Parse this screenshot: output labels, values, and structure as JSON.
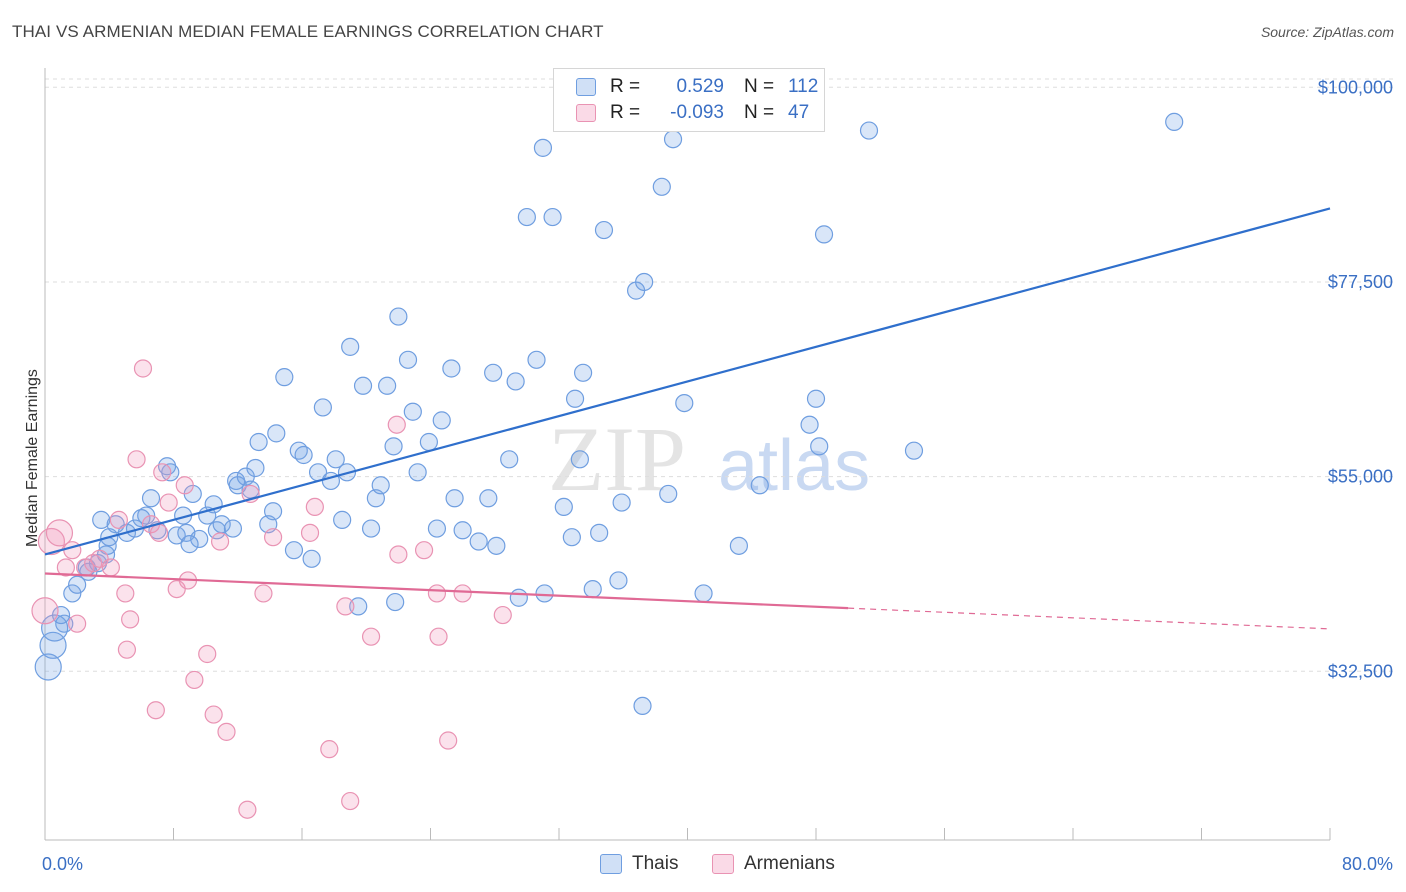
{
  "header": {
    "title": "THAI VS ARMENIAN MEDIAN FEMALE EARNINGS CORRELATION CHART",
    "source": "Source: ZipAtlas.com"
  },
  "watermark": {
    "zip": "ZIP",
    "atlas": "atlas"
  },
  "colors": {
    "thai_fill": "rgba(120,165,230,0.28)",
    "thai_stroke": "#6f9ee0",
    "thai_line": "#2f6fcc",
    "armenian_fill": "rgba(240,150,185,0.28)",
    "armenian_stroke": "#e993b3",
    "armenian_line": "#e06a95",
    "grid": "#dddddd",
    "tick_label": "#3a6fc4"
  },
  "legend": {
    "rows": [
      {
        "r_label": "R =",
        "r_value": "0.529",
        "n_label": "N =",
        "n_value": "112"
      },
      {
        "r_label": "R =",
        "r_value": "-0.093",
        "n_label": "N =",
        "n_value": "47"
      }
    ]
  },
  "bottom_legend": {
    "thai": "Thais",
    "armenian": "Armenians"
  },
  "chart_data": {
    "type": "scatter",
    "xlabel": "",
    "ylabel": "Median Female Earnings",
    "xlim": [
      0,
      80
    ],
    "ylim": [
      13000,
      102000
    ],
    "x_tick_labels": {
      "left": "0.0%",
      "right": "80.0%"
    },
    "y_ticks": [
      {
        "value": 32500,
        "label": "$32,500"
      },
      {
        "value": 55000,
        "label": "$55,000"
      },
      {
        "value": 77500,
        "label": "$77,500"
      },
      {
        "value": 100000,
        "label": "$100,000"
      }
    ],
    "series": [
      {
        "name": "Thais",
        "trend": {
          "x1": 0,
          "y1": 46000,
          "x2": 80,
          "y2": 86000,
          "solid_to": 80
        },
        "points": [
          [
            0.2,
            33000
          ],
          [
            0.5,
            35500
          ],
          [
            1.2,
            38000
          ],
          [
            1.7,
            41500
          ],
          [
            2.0,
            42500
          ],
          [
            2.6,
            44500
          ],
          [
            3.3,
            45000
          ],
          [
            3.8,
            46000
          ],
          [
            3.5,
            50000
          ],
          [
            3.9,
            47000
          ],
          [
            4.4,
            49500
          ],
          [
            5.1,
            48500
          ],
          [
            5.6,
            49000
          ],
          [
            6.3,
            50500
          ],
          [
            6.6,
            52500
          ],
          [
            7.0,
            48800
          ],
          [
            7.8,
            55500
          ],
          [
            7.6,
            56200
          ],
          [
            8.2,
            48200
          ],
          [
            8.6,
            50500
          ],
          [
            8.8,
            48500
          ],
          [
            9.2,
            53000
          ],
          [
            9.6,
            47800
          ],
          [
            10.1,
            50500
          ],
          [
            10.5,
            51800
          ],
          [
            10.7,
            48800
          ],
          [
            11.0,
            49500
          ],
          [
            11.7,
            49000
          ],
          [
            11.9,
            54500
          ],
          [
            12.0,
            54000
          ],
          [
            12.5,
            55000
          ],
          [
            13.1,
            56000
          ],
          [
            13.3,
            59000
          ],
          [
            13.9,
            49500
          ],
          [
            14.2,
            51000
          ],
          [
            14.4,
            60000
          ],
          [
            14.9,
            66500
          ],
          [
            15.5,
            46500
          ],
          [
            15.8,
            58000
          ],
          [
            16.1,
            57500
          ],
          [
            16.6,
            45500
          ],
          [
            17.0,
            55500
          ],
          [
            17.3,
            63000
          ],
          [
            17.8,
            54500
          ],
          [
            18.1,
            57000
          ],
          [
            18.5,
            50000
          ],
          [
            18.8,
            55500
          ],
          [
            19.0,
            70000
          ],
          [
            19.5,
            40000
          ],
          [
            19.8,
            65500
          ],
          [
            20.3,
            49000
          ],
          [
            20.6,
            52500
          ],
          [
            20.9,
            54000
          ],
          [
            21.3,
            65500
          ],
          [
            21.8,
            40500
          ],
          [
            21.7,
            58500
          ],
          [
            22.0,
            73500
          ],
          [
            22.6,
            68500
          ],
          [
            22.9,
            62500
          ],
          [
            23.2,
            55500
          ],
          [
            23.9,
            59000
          ],
          [
            24.4,
            49000
          ],
          [
            24.7,
            61500
          ],
          [
            25.3,
            67500
          ],
          [
            25.5,
            52500
          ],
          [
            26.0,
            48800
          ],
          [
            27.0,
            47500
          ],
          [
            27.6,
            52500
          ],
          [
            27.9,
            67000
          ],
          [
            28.1,
            47000
          ],
          [
            28.9,
            57000
          ],
          [
            29.3,
            66000
          ],
          [
            29.5,
            41000
          ],
          [
            30.0,
            85000
          ],
          [
            30.6,
            68500
          ],
          [
            31.0,
            93000
          ],
          [
            31.1,
            41500
          ],
          [
            31.6,
            85000
          ],
          [
            32.3,
            51500
          ],
          [
            32.8,
            48000
          ],
          [
            33.0,
            64000
          ],
          [
            33.5,
            67000
          ],
          [
            33.3,
            57000
          ],
          [
            34.1,
            42000
          ],
          [
            34.5,
            48500
          ],
          [
            34.8,
            83500
          ],
          [
            35.7,
            43000
          ],
          [
            35.9,
            52000
          ],
          [
            36.8,
            76500
          ],
          [
            37.2,
            28500
          ],
          [
            37.3,
            77500
          ],
          [
            38.4,
            88500
          ],
          [
            38.8,
            53000
          ],
          [
            39.1,
            94000
          ],
          [
            39.8,
            63500
          ],
          [
            41.0,
            41500
          ],
          [
            43.2,
            47000
          ],
          [
            44.5,
            54000
          ],
          [
            47.6,
            61000
          ],
          [
            48.0,
            64000
          ],
          [
            48.2,
            58500
          ],
          [
            48.5,
            83000
          ],
          [
            51.3,
            95000
          ],
          [
            54.1,
            58000
          ],
          [
            70.3,
            96000
          ],
          [
            0.6,
            37500
          ],
          [
            1.0,
            39000
          ],
          [
            2.7,
            44000
          ],
          [
            4.0,
            48000
          ],
          [
            6.0,
            50200
          ],
          [
            9.0,
            47200
          ],
          [
            12.8,
            53500
          ]
        ]
      },
      {
        "name": "Armenians",
        "trend": {
          "x1": 0,
          "y1": 43800,
          "x2": 80,
          "y2": 37400,
          "solid_to": 50
        },
        "points": [
          [
            0.0,
            39500
          ],
          [
            0.4,
            47500
          ],
          [
            0.9,
            48500
          ],
          [
            1.3,
            44500
          ],
          [
            1.7,
            46500
          ],
          [
            2.0,
            38000
          ],
          [
            2.5,
            44500
          ],
          [
            3.0,
            45000
          ],
          [
            3.4,
            45500
          ],
          [
            4.1,
            44500
          ],
          [
            4.6,
            50000
          ],
          [
            5.0,
            41500
          ],
          [
            5.1,
            35000
          ],
          [
            5.3,
            38500
          ],
          [
            5.7,
            57000
          ],
          [
            6.1,
            67500
          ],
          [
            6.6,
            49500
          ],
          [
            6.9,
            28000
          ],
          [
            7.1,
            48500
          ],
          [
            7.3,
            55500
          ],
          [
            7.7,
            52000
          ],
          [
            8.2,
            42000
          ],
          [
            8.7,
            54000
          ],
          [
            8.9,
            43000
          ],
          [
            9.3,
            31500
          ],
          [
            10.1,
            34500
          ],
          [
            10.5,
            27500
          ],
          [
            10.9,
            47500
          ],
          [
            11.3,
            25500
          ],
          [
            12.6,
            16500
          ],
          [
            12.8,
            53000
          ],
          [
            13.6,
            41500
          ],
          [
            14.2,
            48000
          ],
          [
            16.5,
            48500
          ],
          [
            16.8,
            51500
          ],
          [
            17.7,
            23500
          ],
          [
            18.7,
            40000
          ],
          [
            19.0,
            17500
          ],
          [
            20.3,
            36500
          ],
          [
            21.9,
            61000
          ],
          [
            22.0,
            46000
          ],
          [
            23.6,
            46500
          ],
          [
            24.4,
            41500
          ],
          [
            24.5,
            36500
          ],
          [
            25.1,
            24500
          ],
          [
            26.0,
            41500
          ],
          [
            28.5,
            39000
          ]
        ]
      }
    ]
  }
}
